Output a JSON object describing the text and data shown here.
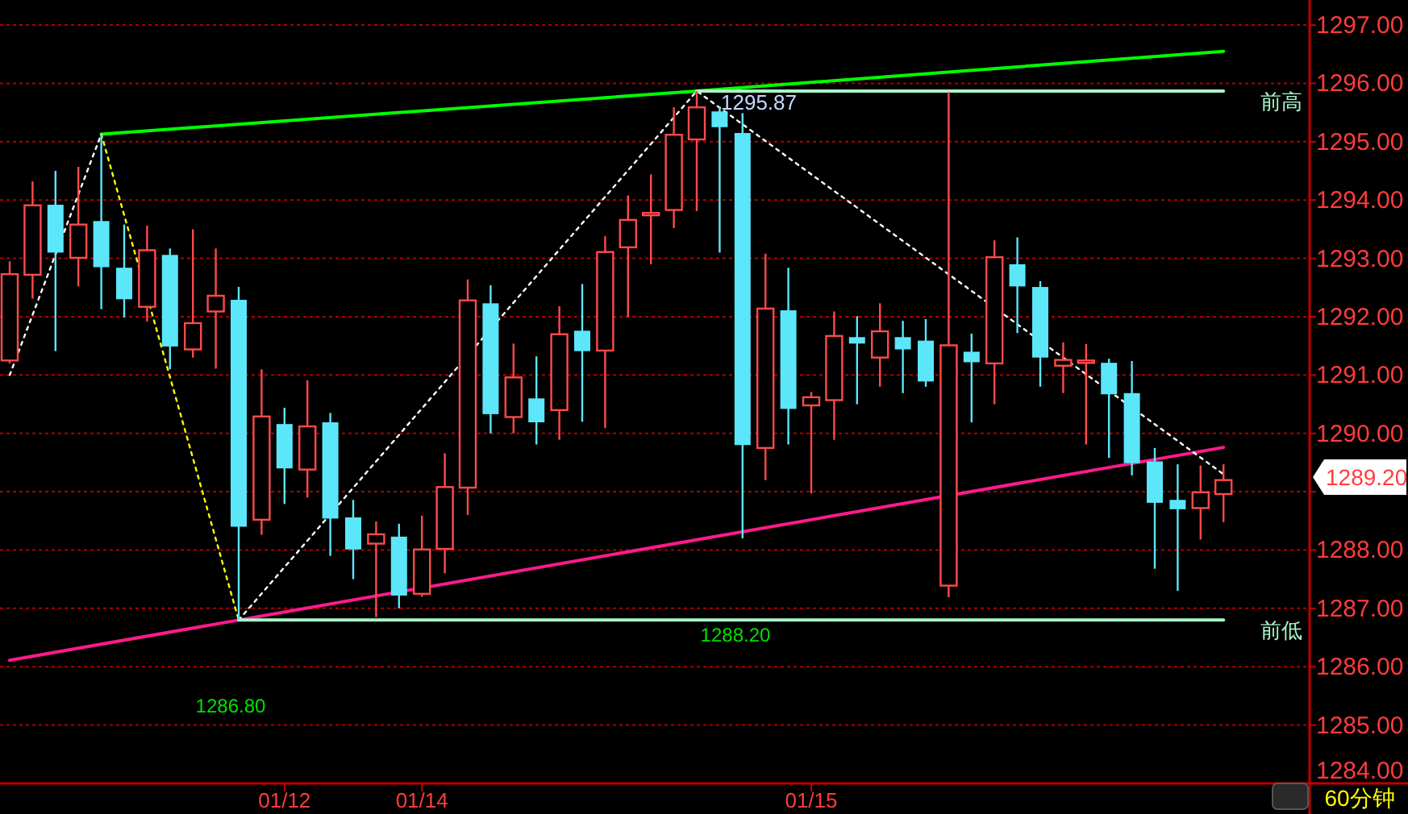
{
  "chart_data": {
    "type": "candlestick",
    "categories": [
      null,
      null,
      null,
      null,
      null,
      null,
      null,
      null,
      null,
      null,
      null,
      null,
      "01/12",
      null,
      null,
      null,
      null,
      null,
      "01/14",
      null,
      null,
      null,
      null,
      null,
      null,
      null,
      null,
      null,
      null,
      null,
      null,
      null,
      null,
      null,
      null,
      "01/15",
      null,
      null,
      null,
      null,
      null,
      null,
      null,
      null,
      null,
      null,
      null,
      null,
      null,
      null,
      null,
      null,
      null,
      null
    ],
    "ohlc": [
      [
        1291.25,
        1292.95,
        1291.2,
        1292.73
      ],
      [
        1292.72,
        1294.32,
        1292.31,
        1293.91
      ],
      [
        1293.92,
        1294.5,
        1291.41,
        1293.1
      ],
      [
        1293.01,
        1294.57,
        1292.52,
        1293.58
      ],
      [
        1293.64,
        1295.13,
        1292.13,
        1292.85
      ],
      [
        1292.84,
        1293.58,
        1291.99,
        1292.3
      ],
      [
        1292.17,
        1293.56,
        1291.92,
        1293.14
      ],
      [
        1293.06,
        1293.17,
        1291.1,
        1291.49
      ],
      [
        1291.44,
        1293.5,
        1291.3,
        1291.89
      ],
      [
        1292.09,
        1293.17,
        1291.11,
        1292.36
      ],
      [
        1292.29,
        1292.51,
        1286.8,
        1288.4
      ],
      [
        1288.52,
        1291.1,
        1288.26,
        1290.29
      ],
      [
        1290.16,
        1290.44,
        1288.79,
        1289.4
      ],
      [
        1289.38,
        1290.91,
        1288.9,
        1290.12
      ],
      [
        1290.19,
        1290.35,
        1287.9,
        1288.54
      ],
      [
        1288.56,
        1288.86,
        1287.5,
        1288.01
      ],
      [
        1288.11,
        1288.49,
        1286.85,
        1288.27
      ],
      [
        1288.23,
        1288.45,
        1287.0,
        1287.22
      ],
      [
        1287.25,
        1288.59,
        1287.2,
        1288.01
      ],
      [
        1288.02,
        1289.66,
        1287.6,
        1289.08
      ],
      [
        1289.07,
        1292.64,
        1288.6,
        1292.28
      ],
      [
        1292.23,
        1292.54,
        1290.0,
        1290.33
      ],
      [
        1290.28,
        1291.54,
        1290.0,
        1290.96
      ],
      [
        1290.6,
        1291.32,
        1289.81,
        1290.19
      ],
      [
        1290.4,
        1292.18,
        1289.89,
        1291.7
      ],
      [
        1291.76,
        1292.56,
        1290.2,
        1291.41
      ],
      [
        1291.42,
        1293.38,
        1290.09,
        1293.11
      ],
      [
        1293.19,
        1294.08,
        1291.99,
        1293.66
      ],
      [
        1293.78,
        1294.44,
        1292.9,
        1293.78
      ],
      [
        1293.83,
        1295.59,
        1293.52,
        1295.12
      ],
      [
        1295.04,
        1295.87,
        1293.81,
        1295.59
      ],
      [
        1295.52,
        1295.6,
        1293.1,
        1295.25
      ],
      [
        1295.15,
        1295.49,
        1288.2,
        1289.8
      ],
      [
        1289.75,
        1293.08,
        1289.2,
        1292.14
      ],
      [
        1292.11,
        1292.84,
        1289.81,
        1290.42
      ],
      [
        1290.48,
        1290.71,
        1288.97,
        1290.62
      ],
      [
        1290.57,
        1292.09,
        1289.89,
        1291.67
      ],
      [
        1291.65,
        1292.01,
        1290.5,
        1291.54
      ],
      [
        1291.3,
        1292.23,
        1290.8,
        1291.75
      ],
      [
        1291.65,
        1291.93,
        1290.69,
        1291.44
      ],
      [
        1291.59,
        1291.96,
        1290.8,
        1290.89
      ],
      [
        1287.39,
        1295.85,
        1287.19,
        1291.51
      ],
      [
        1291.4,
        1291.71,
        1290.19,
        1291.22
      ],
      [
        1291.2,
        1293.31,
        1290.5,
        1293.02
      ],
      [
        1292.9,
        1293.36,
        1291.72,
        1292.52
      ],
      [
        1292.51,
        1292.61,
        1290.8,
        1291.3
      ],
      [
        1291.16,
        1291.56,
        1290.69,
        1291.26
      ],
      [
        1291.25,
        1291.53,
        1289.81,
        1291.25
      ],
      [
        1291.21,
        1291.28,
        1289.58,
        1290.67
      ],
      [
        1290.69,
        1291.24,
        1289.28,
        1289.49
      ],
      [
        1289.52,
        1289.75,
        1287.68,
        1288.81
      ],
      [
        1288.86,
        1289.47,
        1287.3,
        1288.7
      ],
      [
        1288.72,
        1289.45,
        1288.18,
        1288.99
      ],
      [
        1288.96,
        1289.47,
        1288.48,
        1289.2
      ]
    ],
    "series": [
      {
        "type": "line",
        "color": "#00ff00",
        "line_style": "solid",
        "values": [
          null,
          null,
          null,
          null,
          1295.13,
          null,
          null,
          null,
          null,
          null,
          null,
          null,
          null,
          null,
          null,
          null,
          null,
          null,
          null,
          null,
          null,
          null,
          null,
          null,
          null,
          null,
          null,
          null,
          null,
          null,
          1295.87,
          null,
          null,
          null,
          null,
          null,
          null,
          null,
          null,
          null,
          null,
          null,
          null,
          null,
          null,
          null,
          null,
          null,
          null,
          null,
          null,
          null,
          null,
          1296.55
        ]
      },
      {
        "type": "line",
        "color": "#ff1a8c",
        "line_style": "solid",
        "values": [
          1286.11,
          null,
          null,
          null,
          null,
          null,
          null,
          null,
          null,
          null,
          1286.8,
          null,
          null,
          null,
          null,
          null,
          null,
          null,
          null,
          null,
          null,
          null,
          null,
          null,
          null,
          null,
          null,
          null,
          null,
          null,
          null,
          null,
          null,
          null,
          null,
          null,
          null,
          null,
          null,
          null,
          null,
          null,
          null,
          null,
          null,
          null,
          null,
          null,
          null,
          null,
          null,
          null,
          null,
          1289.76
        ]
      },
      {
        "type": "line",
        "color": "#ffffff",
        "line_style": "dotted",
        "values": [
          1291.0,
          null,
          null,
          null,
          1295.13,
          null,
          null,
          null,
          null,
          null,
          null,
          null,
          null,
          null,
          null,
          null,
          null,
          null,
          null,
          null,
          null,
          null,
          null,
          null,
          null,
          null,
          null,
          null,
          null,
          null,
          null,
          null,
          null,
          null,
          null,
          null,
          null,
          null,
          null,
          null,
          null,
          null,
          null,
          null,
          null,
          null,
          null,
          null,
          null,
          null,
          null,
          null,
          null,
          null
        ]
      },
      {
        "type": "line",
        "color": "#ffff00",
        "line_style": "dotted",
        "values": [
          null,
          null,
          null,
          null,
          1295.13,
          null,
          null,
          null,
          null,
          null,
          1286.8,
          null,
          null,
          null,
          null,
          null,
          null,
          null,
          null,
          null,
          null,
          null,
          null,
          null,
          null,
          null,
          null,
          null,
          null,
          null,
          null,
          null,
          null,
          null,
          null,
          null,
          null,
          null,
          null,
          null,
          null,
          null,
          null,
          null,
          null,
          null,
          null,
          null,
          null,
          null,
          null,
          null,
          null,
          null
        ]
      },
      {
        "type": "line",
        "color": "#ffffff",
        "line_style": "dotted",
        "values": [
          null,
          null,
          null,
          null,
          null,
          null,
          null,
          null,
          null,
          null,
          1286.8,
          null,
          null,
          null,
          null,
          null,
          null,
          null,
          null,
          null,
          null,
          null,
          null,
          null,
          null,
          null,
          null,
          null,
          null,
          null,
          1295.87,
          null,
          null,
          null,
          null,
          null,
          null,
          null,
          null,
          null,
          null,
          null,
          null,
          null,
          null,
          null,
          null,
          null,
          null,
          null,
          null,
          null,
          null,
          1289.3
        ]
      },
      {
        "type": "line",
        "name": "前高",
        "color": "#a8f5c8",
        "line_style": "solid",
        "values": [
          null,
          null,
          null,
          null,
          null,
          null,
          null,
          null,
          null,
          null,
          null,
          null,
          null,
          null,
          null,
          null,
          null,
          null,
          null,
          null,
          null,
          null,
          null,
          null,
          null,
          null,
          null,
          null,
          null,
          null,
          1295.87,
          null,
          null,
          null,
          null,
          null,
          null,
          null,
          null,
          null,
          null,
          null,
          null,
          null,
          null,
          null,
          null,
          null,
          null,
          null,
          null,
          null,
          null,
          1295.87
        ]
      },
      {
        "type": "line",
        "name": "前低",
        "color": "#a8f5c8",
        "line_style": "solid",
        "values": [
          null,
          null,
          null,
          null,
          null,
          null,
          null,
          null,
          null,
          null,
          1286.8,
          null,
          null,
          null,
          null,
          null,
          null,
          null,
          null,
          null,
          null,
          null,
          null,
          null,
          null,
          null,
          null,
          null,
          null,
          null,
          null,
          null,
          null,
          null,
          null,
          null,
          null,
          null,
          null,
          null,
          null,
          null,
          null,
          null,
          null,
          null,
          null,
          null,
          null,
          null,
          null,
          null,
          null,
          1286.8
        ]
      }
    ],
    "ylim": [
      1284,
      1297.43
    ],
    "yticks": [
      {
        "value": 1284,
        "label": "1284.00"
      },
      {
        "value": 1285,
        "label": "1285.00"
      },
      {
        "value": 1286,
        "label": "1286.00"
      },
      {
        "value": 1287,
        "label": "1287.00"
      },
      {
        "value": 1288,
        "label": "1288.00"
      },
      {
        "value": 1289,
        "label": null
      },
      {
        "value": 1290,
        "label": "1290.00"
      },
      {
        "value": 1291,
        "label": "1291.00"
      },
      {
        "value": 1292,
        "label": "1292.00"
      },
      {
        "value": 1293,
        "label": "1293.00"
      },
      {
        "value": 1294,
        "label": "1294.00"
      },
      {
        "value": 1295,
        "label": "1295.00"
      },
      {
        "value": 1296,
        "label": "1296.00"
      },
      {
        "value": 1297,
        "label": "1297.00"
      }
    ],
    "grid": "y",
    "annotations": [
      "1295.87",
      "1286.80",
      "1288.20",
      "1289.20",
      "60分钟"
    ]
  }
}
